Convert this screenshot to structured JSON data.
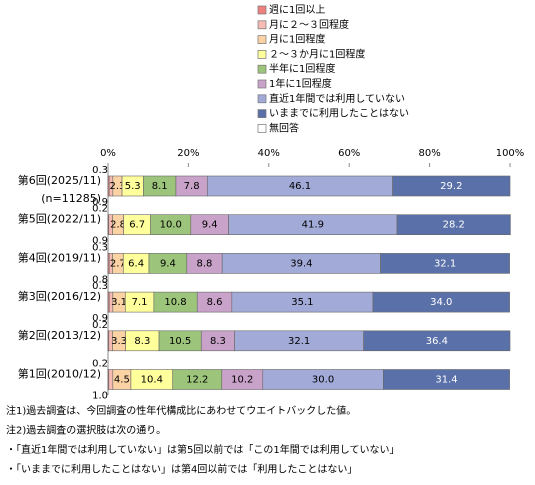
{
  "chart_data": {
    "type": "stacked-bar-horizontal",
    "categories": [
      "第6回(2025/11)",
      "第5回(2022/11)",
      "第4回(2019/11)",
      "第3回(2016/12)",
      "第2回(2013/12)",
      "第1回(2010/12)"
    ],
    "annotations": [
      "(n=11285)"
    ],
    "series": [
      {
        "name": "週に1回以上",
        "color": "#ee8080",
        "values": [
          0.3,
          0.2,
          0.3,
          0.3,
          0.2,
          0.2
        ],
        "value_labels": [
          "0.3",
          "0.2",
          "0.3",
          "0.3",
          "0.2",
          "0.2"
        ]
      },
      {
        "name": "月に２～３回程度",
        "color": "#f6bcb4",
        "values": [
          0.9,
          0.9,
          0.8,
          0.9,
          0.9,
          1.0
        ],
        "value_labels": [
          "0.9",
          "0.9",
          "0.8",
          "0.9",
          null,
          "1.0"
        ]
      },
      {
        "name": "月に1回程度",
        "color": "#fad2a4",
        "values": [
          2.3,
          2.8,
          2.7,
          3.1,
          3.3,
          4.5
        ],
        "value_labels": [
          "2.3",
          "2.8",
          "2.7",
          "3.1",
          "3.3",
          "4.5"
        ]
      },
      {
        "name": "２～３か月に1回程度",
        "color": "#ffff9c",
        "values": [
          5.3,
          6.7,
          6.4,
          7.1,
          8.3,
          10.4
        ],
        "value_labels": [
          "5.3",
          "6.7",
          "6.4",
          "7.1",
          "8.3",
          "10.4"
        ]
      },
      {
        "name": "半年に1回程度",
        "color": "#9cc47a",
        "values": [
          8.1,
          10.0,
          9.4,
          10.8,
          10.5,
          12.2
        ],
        "value_labels": [
          "8.1",
          "10.0",
          "9.4",
          "10.8",
          "10.5",
          "12.2"
        ]
      },
      {
        "name": "1年に1回程度",
        "color": "#c8a2c8",
        "values": [
          7.8,
          9.4,
          8.8,
          8.6,
          8.3,
          10.2
        ],
        "value_labels": [
          "7.8",
          "9.4",
          "8.8",
          "8.6",
          "8.3",
          "10.2"
        ]
      },
      {
        "name": "直近1年間では利用していない",
        "color": "#a2aad8",
        "values": [
          46.1,
          41.9,
          39.4,
          35.1,
          32.1,
          30.0
        ],
        "value_labels": [
          "46.1",
          "41.9",
          "39.4",
          "35.1",
          "32.1",
          "30.0"
        ]
      },
      {
        "name": "いままでに利用したことはない",
        "color": "#5a70a8",
        "values": [
          29.2,
          28.2,
          32.1,
          34.0,
          36.4,
          31.4
        ],
        "value_labels": [
          "29.2",
          "28.2",
          "32.1",
          "34.0",
          "36.4",
          "31.4"
        ]
      },
      {
        "name": "無回答",
        "color": "#ffffff",
        "values": [
          null,
          null,
          null,
          null,
          null,
          null
        ]
      }
    ],
    "xlim": [
      0,
      100
    ],
    "xticks": [
      {
        "value": 0,
        "label": "0%"
      },
      {
        "value": 20,
        "label": "20%"
      },
      {
        "value": 40,
        "label": "40%"
      },
      {
        "value": 60,
        "label": "60%"
      },
      {
        "value": 80,
        "label": "80%"
      },
      {
        "value": 100,
        "label": "100%"
      }
    ],
    "notes": [
      "注1)過去調査は、今回調査の性年代構成比にあわせてウエイトバックした値。",
      "注2)過去調査の選択肢は次の通り。",
      "・「直近1年間では利用していない」は第5回以前では「この1年間では利用していない」",
      "・「いままでに利用したことはない」は第4回以前では「利用したことはない」"
    ]
  }
}
